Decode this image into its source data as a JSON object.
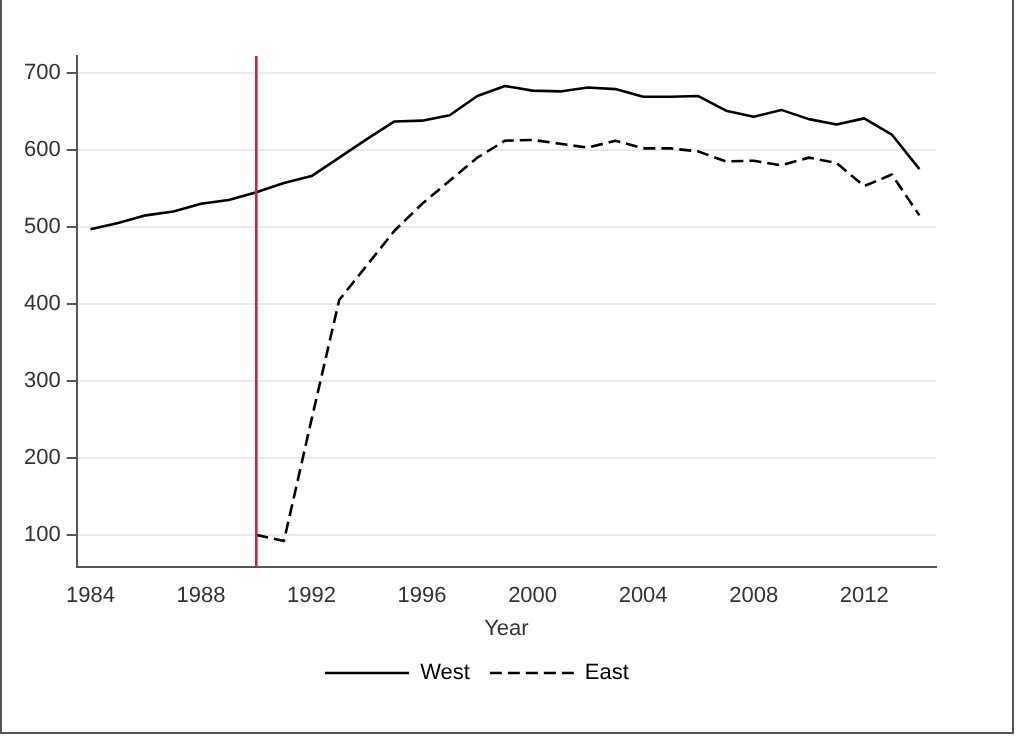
{
  "chart_data": {
    "type": "line",
    "xlabel": "Year",
    "x": [
      1984,
      1985,
      1986,
      1987,
      1988,
      1989,
      1990,
      1991,
      1992,
      1993,
      1994,
      1995,
      1996,
      1997,
      1998,
      1999,
      2000,
      2001,
      2002,
      2003,
      2004,
      2005,
      2006,
      2007,
      2008,
      2009,
      2010,
      2011,
      2012,
      2013,
      2014
    ],
    "series": [
      {
        "name": "West",
        "color": "#000000",
        "line_style": "solid",
        "values": [
          497,
          505,
          515,
          520,
          530,
          535,
          545,
          557,
          566,
          590,
          614,
          637,
          638,
          645,
          670,
          683,
          677,
          676,
          681,
          679,
          669,
          669,
          670,
          651,
          643,
          652,
          640,
          633,
          641,
          620,
          575
        ]
      },
      {
        "name": "East",
        "color": "#000000",
        "line_style": "dashed",
        "values": [
          null,
          null,
          null,
          null,
          null,
          null,
          100,
          92,
          250,
          405,
          450,
          495,
          530,
          560,
          590,
          612,
          613,
          608,
          603,
          612,
          602,
          602,
          598,
          585,
          586,
          580,
          590,
          583,
          553,
          568,
          515
        ]
      }
    ],
    "xlim": [
      1983.5,
      2014.6
    ],
    "xticks": [
      1984,
      1988,
      1992,
      1996,
      2000,
      2004,
      2008,
      2012
    ],
    "ylim": [
      58,
      722
    ],
    "yticks": [
      100,
      200,
      300,
      400,
      500,
      600,
      700
    ],
    "ref_lines": [
      {
        "axis": "x",
        "value": 1990,
        "color": "#c0264b"
      }
    ],
    "grid": "y",
    "legend": "bottom",
    "marker": "none"
  }
}
